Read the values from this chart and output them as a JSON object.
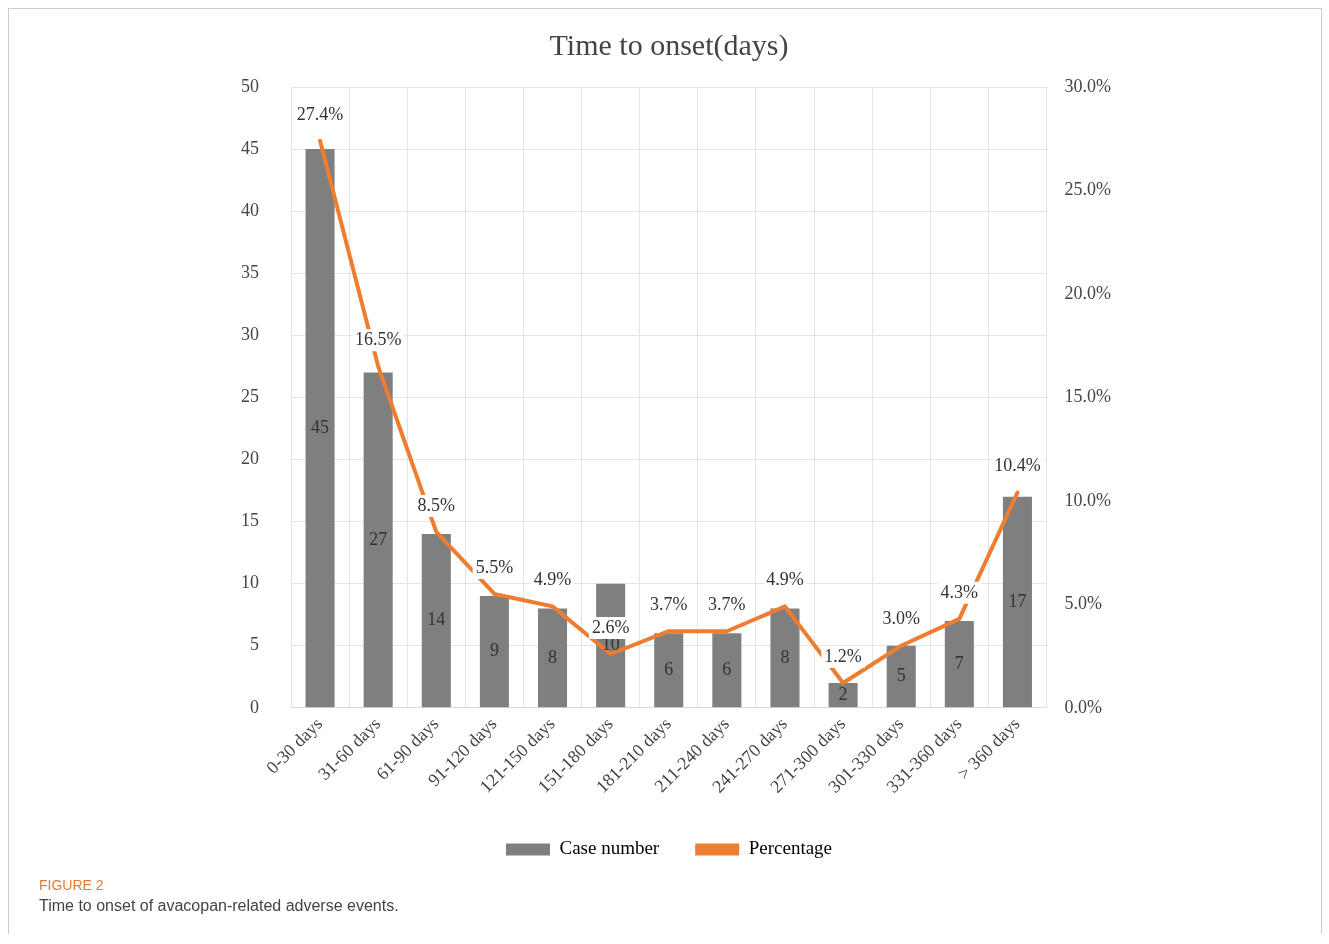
{
  "chart_data": {
    "type": "bar",
    "title": "Time to onset(days)",
    "categories": [
      "0-30 days",
      "31-60 days",
      "61-90 days",
      "91-120 days",
      "121-150 days",
      "151-180 days",
      "181-210 days",
      "211-240 days",
      "241-270 days",
      "271-300 days",
      "301-330 days",
      "331-360 days",
      "> 360 days"
    ],
    "series": [
      {
        "name": "Case number",
        "color": "#7f7f7f",
        "values": [
          45,
          27,
          14,
          9,
          8,
          10,
          6,
          6,
          8,
          2,
          5,
          7,
          17
        ],
        "value_labels": [
          "45",
          "27",
          "14",
          "9",
          "8",
          "10",
          "6",
          "6",
          "8",
          "2",
          "5",
          "7",
          "17"
        ]
      },
      {
        "name": "Percentage",
        "type": "line",
        "axis": "y2",
        "color": "#ed7d31",
        "values": [
          27.4,
          16.5,
          8.5,
          5.5,
          4.9,
          2.6,
          3.7,
          3.7,
          4.9,
          1.2,
          3.0,
          4.3,
          10.4
        ],
        "value_labels": [
          "27.4%",
          "16.5%",
          "8.5%",
          "5.5%",
          "4.9%",
          "2.6%",
          "3.7%",
          "3.7%",
          "4.9%",
          "1.2%",
          "3.0%",
          "4.3%",
          "10.4%"
        ]
      }
    ],
    "ylim": [
      0,
      50
    ],
    "yticks": [
      0,
      5,
      10,
      15,
      20,
      25,
      30,
      35,
      40,
      45,
      50
    ],
    "y2lim": [
      0,
      30
    ],
    "y2ticks": [
      {
        "value": 0,
        "label": "0.0%"
      },
      {
        "value": 5,
        "label": "5.0%"
      },
      {
        "value": 10,
        "label": "10.0%"
      },
      {
        "value": 15,
        "label": "15.0%"
      },
      {
        "value": 20,
        "label": "20.0%"
      },
      {
        "value": 25,
        "label": "25.0%"
      },
      {
        "value": 30,
        "label": "30.0%"
      }
    ],
    "grid": true,
    "legend": "bottom",
    "marker": "none",
    "annotations": [
      "FIGURE 2",
      "Time to onset of avacopan-related adverse events."
    ]
  }
}
